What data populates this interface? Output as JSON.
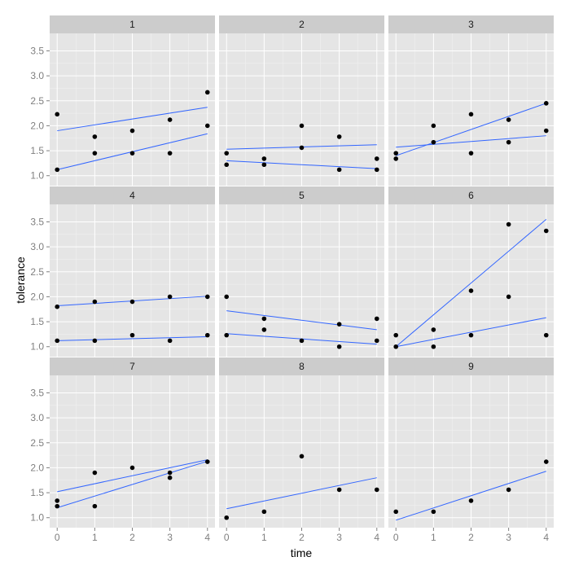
{
  "chart_data": {
    "type": "scatter",
    "layout": "facet_wrap 3x3",
    "xlabel": "time",
    "ylabel": "tolerance",
    "xlim": [
      -0.2,
      4.2
    ],
    "ylim": [
      0.8,
      3.85
    ],
    "x_ticks": [
      0,
      1,
      2,
      3,
      4
    ],
    "y_ticks": [
      1.0,
      1.5,
      2.0,
      2.5,
      3.0,
      3.5
    ],
    "y_tick_labels": [
      "1.0",
      "1.5",
      "2.0",
      "2.5",
      "3.0",
      "3.5"
    ],
    "colors": {
      "panel_bg": "#e5e5e5",
      "strip_bg": "#cccccc",
      "grid_major": "#ffffff",
      "grid_minor": "#f2f2f2",
      "point": "#000000",
      "line": "#3366ff",
      "tick_text": "#7f7f7f",
      "title_text": "#000000"
    },
    "panels": [
      {
        "label": "1",
        "points": [
          [
            0,
            2.23
          ],
          [
            0,
            1.12
          ],
          [
            1,
            1.78
          ],
          [
            1,
            1.45
          ],
          [
            2,
            1.9
          ],
          [
            2,
            1.45
          ],
          [
            3,
            2.12
          ],
          [
            3,
            1.45
          ],
          [
            4,
            2.67
          ],
          [
            4,
            2.0
          ]
        ],
        "fits": [
          [
            [
              0,
              1.9
            ],
            [
              4,
              2.37
            ]
          ],
          [
            [
              0,
              1.12
            ],
            [
              4,
              1.84
            ]
          ]
        ]
      },
      {
        "label": "2",
        "points": [
          [
            0,
            1.45
          ],
          [
            0,
            1.22
          ],
          [
            1,
            1.34
          ],
          [
            1,
            1.22
          ],
          [
            2,
            2.0
          ],
          [
            2,
            1.56
          ],
          [
            3,
            1.78
          ],
          [
            3,
            1.12
          ],
          [
            4,
            1.34
          ],
          [
            4,
            1.12
          ]
        ],
        "fits": [
          [
            [
              0,
              1.53
            ],
            [
              4,
              1.62
            ]
          ],
          [
            [
              0,
              1.3
            ],
            [
              4,
              1.14
            ]
          ]
        ]
      },
      {
        "label": "3",
        "points": [
          [
            0,
            1.45
          ],
          [
            0,
            1.34
          ],
          [
            1,
            2.0
          ],
          [
            1,
            1.67
          ],
          [
            2,
            2.23
          ],
          [
            2,
            1.45
          ],
          [
            3,
            2.12
          ],
          [
            3,
            1.67
          ],
          [
            4,
            2.45
          ],
          [
            4,
            1.9
          ]
        ],
        "fits": [
          [
            [
              0,
              1.4
            ],
            [
              4,
              2.45
            ]
          ],
          [
            [
              0,
              1.57
            ],
            [
              4,
              1.8
            ]
          ]
        ]
      },
      {
        "label": "4",
        "points": [
          [
            0,
            1.8
          ],
          [
            0,
            1.12
          ],
          [
            1,
            1.9
          ],
          [
            1,
            1.12
          ],
          [
            2,
            1.9
          ],
          [
            2,
            1.23
          ],
          [
            3,
            2.0
          ],
          [
            3,
            1.12
          ],
          [
            4,
            2.0
          ],
          [
            4,
            1.23
          ]
        ],
        "fits": [
          [
            [
              0,
              1.82
            ],
            [
              4,
              2.01
            ]
          ],
          [
            [
              0,
              1.12
            ],
            [
              4,
              1.2
            ]
          ]
        ]
      },
      {
        "label": "5",
        "points": [
          [
            0,
            2.0
          ],
          [
            0,
            1.23
          ],
          [
            1,
            1.56
          ],
          [
            1,
            1.34
          ],
          [
            2,
            1.12
          ],
          [
            3,
            1.45
          ],
          [
            3,
            1.0
          ],
          [
            4,
            1.56
          ],
          [
            4,
            1.12
          ]
        ],
        "fits": [
          [
            [
              0,
              1.72
            ],
            [
              4,
              1.34
            ]
          ],
          [
            [
              0,
              1.26
            ],
            [
              4,
              1.05
            ]
          ]
        ]
      },
      {
        "label": "6",
        "points": [
          [
            0,
            1.23
          ],
          [
            0,
            1.0
          ],
          [
            1,
            1.34
          ],
          [
            1,
            1.0
          ],
          [
            2,
            2.12
          ],
          [
            2,
            1.23
          ],
          [
            3,
            3.45
          ],
          [
            3,
            2.0
          ],
          [
            4,
            3.32
          ],
          [
            4,
            1.23
          ]
        ],
        "fits": [
          [
            [
              0,
              1.0
            ],
            [
              4,
              3.55
            ]
          ],
          [
            [
              0,
              1.0
            ],
            [
              4,
              1.58
            ]
          ]
        ]
      },
      {
        "label": "7",
        "points": [
          [
            0,
            1.34
          ],
          [
            0,
            1.23
          ],
          [
            1,
            1.9
          ],
          [
            1,
            1.23
          ],
          [
            2,
            2.0
          ],
          [
            3,
            1.9
          ],
          [
            3,
            1.8
          ],
          [
            4,
            2.12
          ]
        ],
        "fits": [
          [
            [
              0,
              1.52
            ],
            [
              4,
              2.16
            ]
          ],
          [
            [
              0,
              1.2
            ],
            [
              4,
              2.13
            ]
          ]
        ]
      },
      {
        "label": "8",
        "points": [
          [
            0,
            1.0
          ],
          [
            1,
            1.12
          ],
          [
            2,
            2.23
          ],
          [
            3,
            1.56
          ],
          [
            4,
            1.56
          ]
        ],
        "fits": [
          [
            [
              0,
              1.18
            ],
            [
              4,
              1.8
            ]
          ]
        ]
      },
      {
        "label": "9",
        "points": [
          [
            0,
            1.12
          ],
          [
            1,
            1.12
          ],
          [
            2,
            1.34
          ],
          [
            3,
            1.56
          ],
          [
            4,
            2.12
          ]
        ],
        "fits": [
          [
            [
              0,
              0.95
            ],
            [
              4,
              1.93
            ]
          ]
        ]
      }
    ]
  }
}
